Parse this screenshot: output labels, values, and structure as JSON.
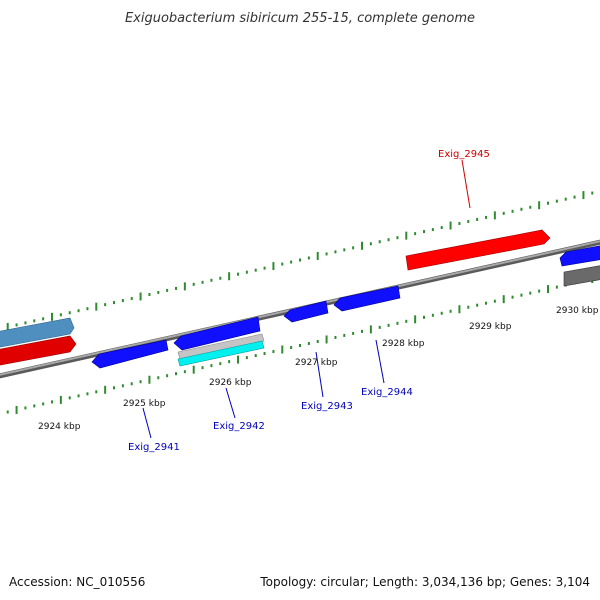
{
  "title": "Exiguobacterium sibiricum 255-15, complete genome",
  "footer": {
    "accession": "Accession: NC_010556",
    "summary": "Topology: circular; Length: 3,034,136 bp; Genes: 3,104"
  },
  "colors": {
    "forward_strand": "#ff0000",
    "reverse_strand": "#0000ee",
    "forward_label": "#cc0000",
    "reverse_label": "#0000bb",
    "tick": "#2e8b2e",
    "backbone": "#808080",
    "rna": "#00e5e5",
    "pseudo": "#bdbdbd",
    "other": "#4f8fc0",
    "dark_feature": "#666666"
  },
  "ticks": {
    "labels": [
      "2924 kbp",
      "2925 kbp",
      "2926 kbp",
      "2927 kbp",
      "2928 kbp",
      "2929 kbp",
      "2930 kbp"
    ]
  },
  "genes": {
    "labels": [
      "Exig_2941",
      "Exig_2942",
      "Exig_2943",
      "Exig_2944",
      "Exig_2945"
    ]
  }
}
